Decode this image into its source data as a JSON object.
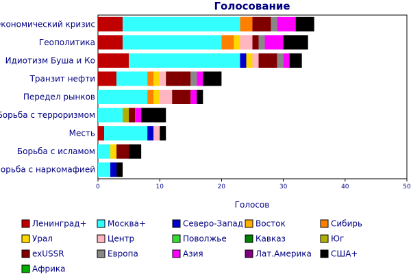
{
  "chart_data": {
    "type": "bar",
    "orientation": "horizontal",
    "stacked": true,
    "title": "Голосование",
    "xlabel": "Голосов",
    "ylabel": "",
    "xlim": [
      0,
      50
    ],
    "xticks": [
      0,
      10,
      20,
      30,
      40,
      50
    ],
    "grid": false,
    "legend_position": "bottom",
    "categories": [
      "Экономический кризис",
      "Геополитика",
      "Идиотизм Буша и Ко",
      "Транзит нефти",
      "Передел рынков",
      "Борьба с терроризмом",
      "Месть",
      "Борьба с исламом",
      "Борьба с наркомафией"
    ],
    "series": [
      {
        "name": "Ленинград+",
        "color": "#c00000",
        "values": [
          4,
          4,
          5,
          3,
          0,
          0,
          1,
          0,
          0
        ]
      },
      {
        "name": "Москва+",
        "color": "#33ffff",
        "values": [
          19,
          16,
          18,
          5,
          8,
          4,
          7,
          2,
          2
        ]
      },
      {
        "name": "Северо-Запад",
        "color": "#0000cc",
        "values": [
          0,
          0,
          1,
          0,
          0,
          0,
          1,
          0,
          1
        ]
      },
      {
        "name": "Восток",
        "color": "#ffb000",
        "values": [
          0,
          0,
          0,
          0,
          0,
          0,
          0,
          0,
          0
        ]
      },
      {
        "name": "Сибирь",
        "color": "#ff8000",
        "values": [
          2,
          2,
          0,
          1,
          1,
          0,
          0,
          0,
          0
        ]
      },
      {
        "name": "Урал",
        "color": "#ffd700",
        "values": [
          0,
          1,
          1,
          1,
          1,
          0,
          0,
          1,
          0
        ]
      },
      {
        "name": "Центр",
        "color": "#ffb6c1",
        "values": [
          0,
          2,
          1,
          1,
          2,
          0,
          1,
          0,
          0
        ]
      },
      {
        "name": "Поволжье",
        "color": "#33dd33",
        "values": [
          0,
          0,
          0,
          0,
          0,
          0,
          0,
          0,
          0
        ]
      },
      {
        "name": "Кавказ",
        "color": "#008000",
        "values": [
          0,
          0,
          0,
          0,
          0,
          0,
          0,
          0,
          0
        ]
      },
      {
        "name": "Юг",
        "color": "#b0b000",
        "values": [
          0,
          0,
          0,
          0,
          0,
          1,
          0,
          0,
          0
        ]
      },
      {
        "name": "exUSSR",
        "color": "#800000",
        "values": [
          3,
          1,
          3,
          4,
          3,
          1,
          0,
          2,
          0
        ]
      },
      {
        "name": "Европа",
        "color": "#888888",
        "values": [
          1,
          1,
          1,
          1,
          0,
          0,
          0,
          0,
          0
        ]
      },
      {
        "name": "Азия",
        "color": "#ff00ff",
        "values": [
          3,
          3,
          1,
          1,
          1,
          1,
          0,
          0,
          0
        ]
      },
      {
        "name": "Лат.Америка",
        "color": "#800080",
        "values": [
          0,
          0,
          0,
          0,
          0,
          0,
          0,
          0,
          0
        ]
      },
      {
        "name": "США+",
        "color": "#000000",
        "values": [
          3,
          4,
          2,
          3,
          1,
          4,
          1,
          2,
          1
        ]
      },
      {
        "name": "Африка",
        "color": "#00b000",
        "values": [
          0,
          0,
          0,
          0,
          0,
          0,
          0,
          0,
          0
        ]
      }
    ]
  }
}
